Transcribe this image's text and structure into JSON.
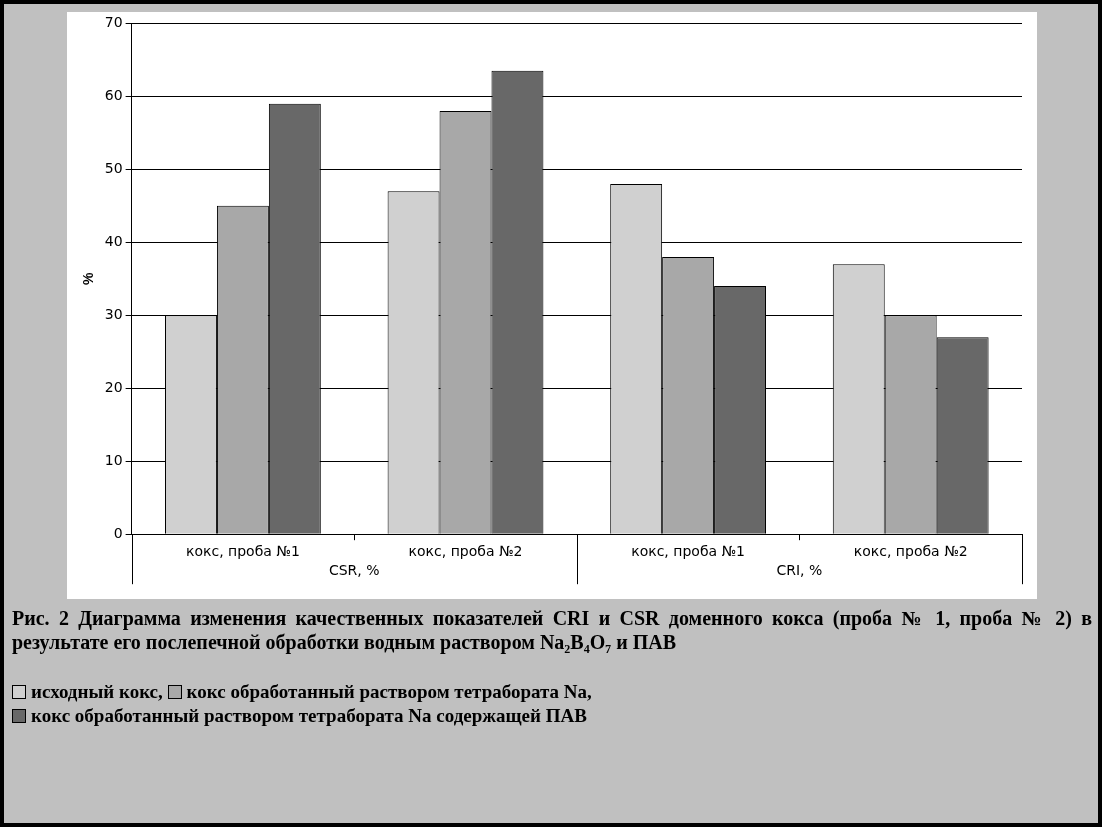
{
  "chart_data": {
    "type": "bar",
    "title": "Рис. 2 Диаграмма изменения качественных показателей CRI и CSR доменного кокса (проба № 1, проба № 2) в результате его послепечной обработки водным раствором Na₂B₄O₇ и ПАВ",
    "ylabel": "%",
    "categories": [
      "кокс, проба №1",
      "кокс, проба №2",
      "кокс, проба №1",
      "кокс, проба №2"
    ],
    "annotations": [
      "CSR, %",
      "CRI, %"
    ],
    "series": [
      {
        "name": "исходный кокс,",
        "color": "#d0d0d0",
        "values": [
          30,
          47,
          48,
          37
        ]
      },
      {
        "name": "кокс обработанный раствором тетрабората Na,",
        "color": "#a8a8a8",
        "values": [
          45,
          58,
          38,
          30
        ]
      },
      {
        "name": "кокс обработанный раствором тетрабората Na содержащей ПАВ",
        "color": "#686868",
        "values": [
          59,
          63.5,
          34,
          27
        ]
      }
    ],
    "ylim": [
      0,
      70
    ],
    "yticks": [
      0,
      10,
      20,
      30,
      40,
      50,
      60,
      70
    ],
    "grid": "y",
    "legend": "bottom"
  }
}
